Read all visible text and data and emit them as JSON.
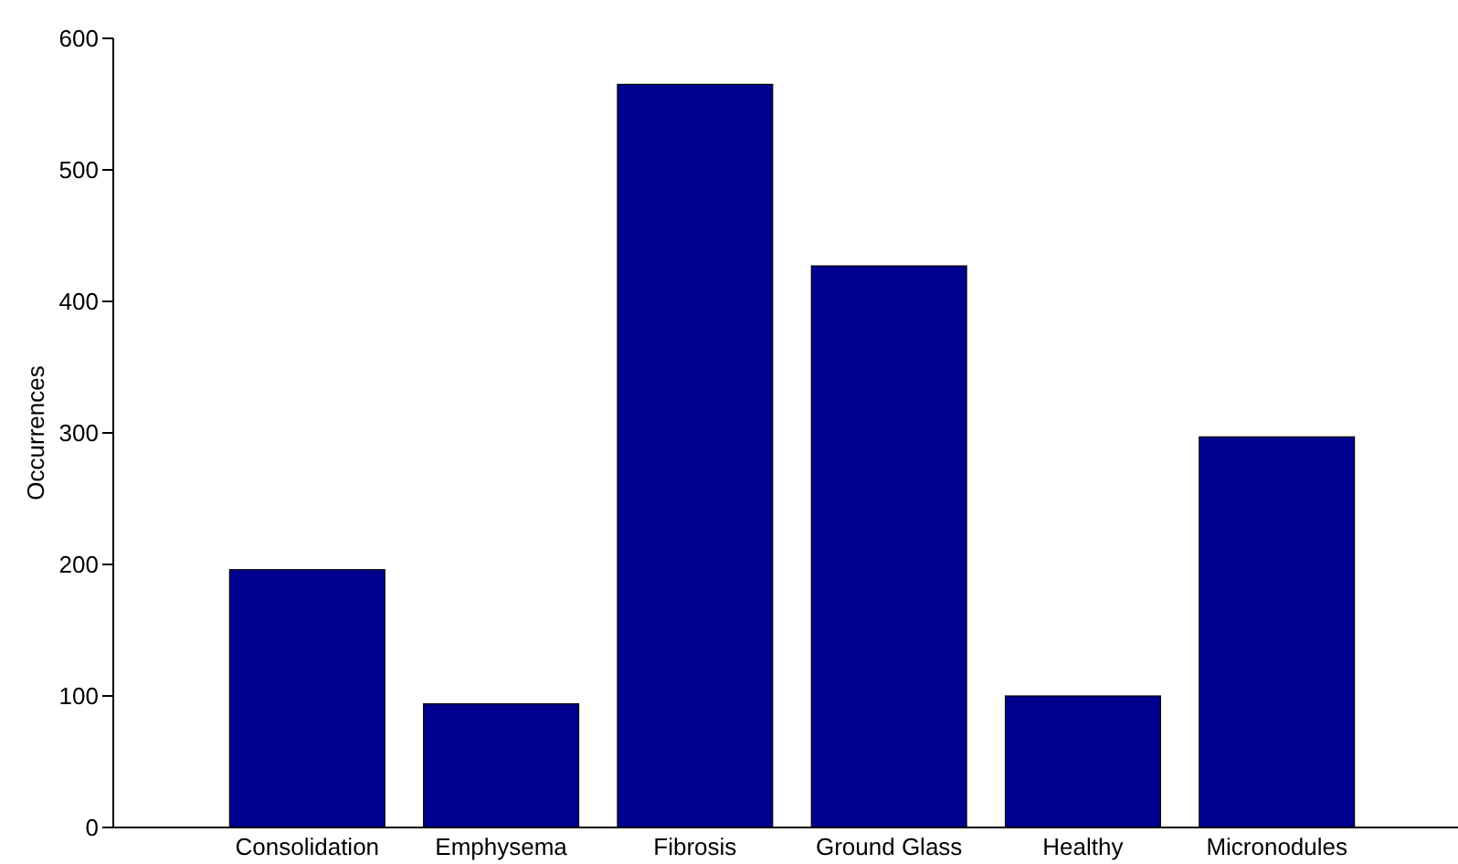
{
  "chart_data": {
    "type": "bar",
    "ylabel": "Occurrences",
    "categories": [
      "Consolidation",
      "Emphysema",
      "Fibrosis",
      "Ground Glass",
      "Healthy",
      "Micronodules"
    ],
    "values": [
      196,
      94,
      565,
      427,
      100,
      297
    ],
    "color": "#00008f",
    "ylim": [
      0,
      600
    ],
    "yticks": [
      0,
      100,
      200,
      300,
      400,
      500,
      600
    ],
    "grid": false
  }
}
